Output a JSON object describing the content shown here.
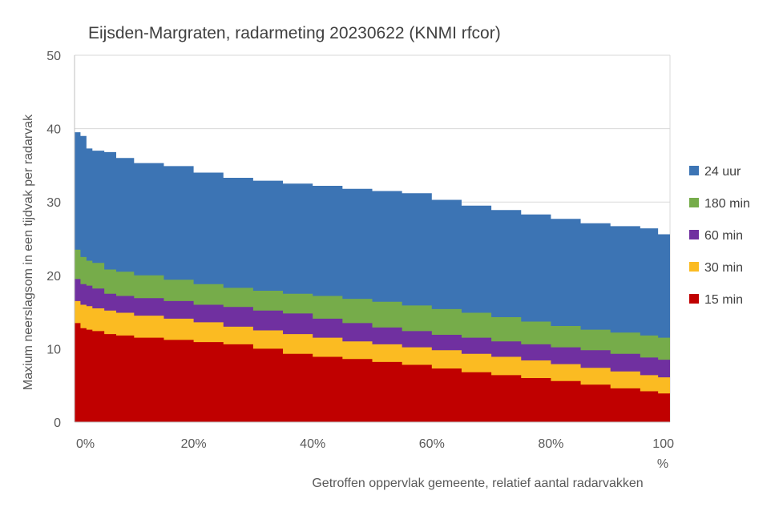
{
  "chart_data": {
    "type": "area",
    "title": "Eijsden-Margraten, radarmeting 20230622 (KNMI rfcor)",
    "xlabel": "Getroffen oppervlak gemeente, relatief aantal radarvakken",
    "xunit": "%",
    "ylabel": "Maxium neerslagsom in een tijdvak per radarvak",
    "xlim": [
      0,
      100
    ],
    "ylim": [
      0,
      50
    ],
    "xticks": [
      0,
      20,
      40,
      60,
      80,
      100
    ],
    "xtick_labels": [
      "0%",
      "20%",
      "40%",
      "60%",
      "80%",
      "100"
    ],
    "yticks": [
      0,
      10,
      20,
      30,
      40,
      50
    ],
    "grid": true,
    "legend_position": "right",
    "x": [
      0,
      1,
      2,
      3,
      5,
      7,
      10,
      15,
      20,
      25,
      30,
      35,
      40,
      45,
      50,
      55,
      60,
      65,
      70,
      75,
      80,
      85,
      90,
      95,
      98,
      100
    ],
    "series": [
      {
        "name": "24 uur",
        "color": "#3c74b4",
        "values": [
          39.5,
          39.0,
          37.3,
          37.0,
          36.8,
          36.0,
          35.3,
          34.9,
          34.0,
          33.3,
          32.9,
          32.5,
          32.2,
          31.8,
          31.5,
          31.2,
          30.3,
          29.5,
          28.9,
          28.3,
          27.7,
          27.1,
          26.7,
          26.4,
          25.6,
          25.4
        ]
      },
      {
        "name": "180 min",
        "color": "#76ac4a",
        "values": [
          23.5,
          22.5,
          22.0,
          21.7,
          20.8,
          20.5,
          20.0,
          19.4,
          18.8,
          18.3,
          17.9,
          17.5,
          17.2,
          16.8,
          16.4,
          15.9,
          15.4,
          14.9,
          14.3,
          13.7,
          13.1,
          12.6,
          12.2,
          11.8,
          11.5,
          11.1
        ]
      },
      {
        "name": "60 min",
        "color": "#7030a0",
        "values": [
          19.5,
          18.8,
          18.6,
          18.2,
          17.5,
          17.2,
          16.9,
          16.5,
          16.0,
          15.7,
          15.2,
          14.8,
          14.1,
          13.5,
          12.9,
          12.4,
          11.9,
          11.5,
          11.0,
          10.6,
          10.2,
          9.8,
          9.3,
          8.8,
          8.5,
          8.3
        ]
      },
      {
        "name": "30 min",
        "color": "#fbbb22",
        "values": [
          16.5,
          16.0,
          15.8,
          15.5,
          15.2,
          14.9,
          14.5,
          14.1,
          13.6,
          13.0,
          12.5,
          12.0,
          11.5,
          11.0,
          10.6,
          10.2,
          9.8,
          9.3,
          8.9,
          8.4,
          7.9,
          7.4,
          6.9,
          6.4,
          6.1,
          5.9
        ]
      },
      {
        "name": "15 min",
        "color": "#c00000",
        "values": [
          13.5,
          12.8,
          12.6,
          12.4,
          12.0,
          11.8,
          11.5,
          11.2,
          10.9,
          10.6,
          10.0,
          9.3,
          8.9,
          8.6,
          8.2,
          7.8,
          7.3,
          6.8,
          6.4,
          6.0,
          5.6,
          5.1,
          4.6,
          4.2,
          3.9,
          3.5
        ]
      }
    ]
  }
}
